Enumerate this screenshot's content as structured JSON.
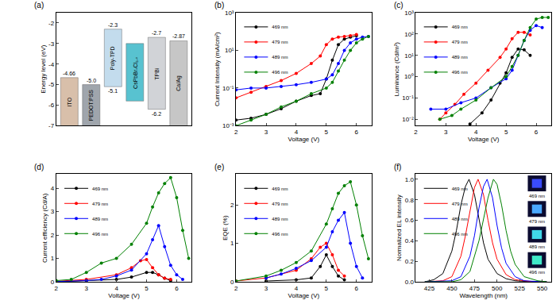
{
  "chart_data": [
    {
      "type": "energy_diagram",
      "panel_label": "(a)",
      "y_label": "Energy level (eV)",
      "ylim": [
        -7,
        -1.5
      ],
      "yticks": [
        -2,
        -3,
        -4,
        -5,
        -6,
        -7
      ],
      "tick_labels": "y",
      "grid": false,
      "layers": [
        {
          "name": "ITO",
          "color": "#d2b49c",
          "top": {
            "value": -4.66,
            "label": "-4.66"
          },
          "bottom": -7
        },
        {
          "name": "PEDOT:PSS",
          "color": "#8f969e",
          "top": {
            "value": -5.0,
            "label": "-5.0"
          },
          "bottom": -7
        },
        {
          "name": "Poly-TPD",
          "color": "#b9d6ea",
          "top": {
            "value": -2.3,
            "label": "-2.3"
          },
          "bottom": {
            "value": -5.1,
            "label": "-5.1"
          }
        },
        {
          "name": "CsPbBrₓCl₃₋ₓ",
          "color": "#3cb8c8",
          "top": -3.0,
          "bottom": -5.8
        },
        {
          "name": "TPBi",
          "color": "#c9ccd1",
          "top": {
            "value": -2.7,
            "label": "-2.7"
          },
          "bottom": {
            "value": -6.2,
            "label": "-6.2"
          }
        },
        {
          "name": "Ca/Ag",
          "color": "#bdbdbd",
          "top": {
            "value": -2.87,
            "label": "-2.87"
          },
          "bottom": -7
        }
      ]
    },
    {
      "type": "line",
      "panel_label": "(b)",
      "x_label": "Voltage (V)",
      "y_label": "Current Intensity (mA/cm²)",
      "log": "y",
      "grid": false,
      "legend": "upper left",
      "marker": "circle",
      "line_style": "solid",
      "xlim": [
        2,
        6.5
      ],
      "xticks": [
        2,
        3,
        4,
        5,
        6
      ],
      "ylim": [
        0.001,
        1000
      ],
      "yticks": [
        {
          "value": 0.001,
          "label": "10⁻³"
        },
        {
          "value": 0.1,
          "label": "10⁻¹"
        },
        {
          "value": 10,
          "label": "10¹"
        },
        {
          "value": 1000,
          "label": "10³"
        }
      ],
      "series": [
        {
          "name": "469 nm",
          "color": "#000000",
          "x": [
            2,
            2.5,
            3,
            3.5,
            4,
            4.5,
            4.8,
            5,
            5.2,
            5.4,
            5.6,
            5.8,
            6
          ],
          "values": [
            0.002,
            0.0025,
            0.004,
            0.008,
            0.02,
            0.04,
            0.05,
            0.3,
            3,
            20,
            40,
            50,
            60
          ]
        },
        {
          "name": "479 nm",
          "color": "#ff0000",
          "x": [
            2,
            2.5,
            3,
            3.5,
            4,
            4.5,
            4.8,
            5,
            5.2,
            5.4,
            5.6,
            5.8,
            6
          ],
          "values": [
            0.03,
            0.06,
            0.12,
            0.25,
            0.6,
            2,
            5,
            20,
            40,
            50,
            55,
            60,
            70
          ]
        },
        {
          "name": "489 nm",
          "color": "#0000ff",
          "x": [
            2,
            2.5,
            3,
            3.5,
            4,
            4.5,
            5,
            5.2,
            5.4,
            5.6,
            5.8,
            6,
            6.2,
            6.4
          ],
          "values": [
            0.08,
            0.1,
            0.1,
            0.12,
            0.15,
            0.2,
            0.3,
            0.5,
            2,
            10,
            25,
            40,
            50,
            55
          ]
        },
        {
          "name": "496 nm",
          "color": "#008000",
          "x": [
            2,
            2.5,
            3,
            3.5,
            4,
            4.5,
            5,
            5.2,
            5.4,
            5.6,
            5.8,
            6,
            6.2,
            6.4
          ],
          "values": [
            0.001,
            0.002,
            0.004,
            0.01,
            0.02,
            0.05,
            0.1,
            0.2,
            0.8,
            3,
            10,
            25,
            40,
            55
          ]
        }
      ]
    },
    {
      "type": "line",
      "panel_label": "(c)",
      "x_label": "Voltage (V)",
      "y_label": "Luminance (Cd/m²)",
      "log": "y",
      "grid": false,
      "legend": "upper left",
      "marker": "circle",
      "line_style": "solid",
      "xlim": [
        2,
        6.5
      ],
      "xticks": [
        2,
        3,
        4,
        5,
        6
      ],
      "ylim": [
        0.005,
        1000
      ],
      "yticks": [
        {
          "value": 0.01,
          "label": "10⁻²"
        },
        {
          "value": 0.1,
          "label": "10⁻¹"
        },
        {
          "value": 1,
          "label": "10⁰"
        },
        {
          "value": 10,
          "label": "10¹"
        },
        {
          "value": 100,
          "label": "10²"
        },
        {
          "value": 1000,
          "label": "10³"
        }
      ],
      "series": [
        {
          "name": "469 nm",
          "color": "#000000",
          "x": [
            3.8,
            4.2,
            4.5,
            4.8,
            5,
            5.2,
            5.4,
            5.6,
            5.8
          ],
          "values": [
            0.006,
            0.02,
            0.08,
            0.5,
            1.5,
            8,
            20,
            18,
            10
          ]
        },
        {
          "name": "479 nm",
          "color": "#ff0000",
          "x": [
            2.8,
            3,
            3.3,
            3.6,
            4,
            4.4,
            4.8,
            5,
            5.2,
            5.4,
            5.6,
            5.8
          ],
          "values": [
            0.01,
            0.02,
            0.05,
            0.15,
            0.5,
            2,
            8,
            20,
            60,
            120,
            120,
            90
          ]
        },
        {
          "name": "489 nm",
          "color": "#0000ff",
          "x": [
            2.5,
            3,
            3.5,
            4,
            4.5,
            5,
            5.2,
            5.4,
            5.6,
            5.8,
            6,
            6.2
          ],
          "values": [
            0.03,
            0.03,
            0.06,
            0.1,
            0.3,
            0.8,
            2,
            10,
            50,
            150,
            250,
            200
          ]
        },
        {
          "name": "496 nm",
          "color": "#008000",
          "x": [
            2.8,
            3.2,
            3.5,
            4,
            4.5,
            5,
            5.2,
            5.4,
            5.6,
            5.8,
            6,
            6.2,
            6.4
          ],
          "values": [
            0.01,
            0.015,
            0.03,
            0.08,
            0.3,
            1,
            3,
            10,
            50,
            200,
            500,
            600,
            600
          ]
        }
      ]
    },
    {
      "type": "line",
      "panel_label": "(d)",
      "x_label": "Voltage (V)",
      "y_label": "Current efficiency (Cd/A)",
      "grid": false,
      "legend": "upper left",
      "marker": "circle",
      "line_style": "solid",
      "xlim": [
        2,
        6.5
      ],
      "xticks": [
        2,
        3,
        4,
        5,
        6
      ],
      "ylim": [
        0,
        4.6
      ],
      "yticks": [
        0,
        1,
        2,
        3,
        4
      ],
      "series": [
        {
          "name": "469 nm",
          "color": "#000000",
          "x": [
            2,
            3,
            4,
            4.5,
            5,
            5.2,
            5.4,
            5.6,
            5.8
          ],
          "values": [
            0,
            0.05,
            0.1,
            0.2,
            0.4,
            0.4,
            0.3,
            0.15,
            0.05
          ]
        },
        {
          "name": "479 nm",
          "color": "#ff0000",
          "x": [
            2,
            3,
            4,
            4.5,
            4.8,
            5,
            5.2,
            5.4,
            5.6,
            5.8
          ],
          "values": [
            0.02,
            0.1,
            0.3,
            0.6,
            0.9,
            0.95,
            0.6,
            0.3,
            0.15,
            0.1
          ]
        },
        {
          "name": "489 nm",
          "color": "#0000ff",
          "x": [
            2,
            3,
            3.5,
            4,
            4.5,
            5,
            5.2,
            5.4,
            5.6,
            5.8,
            6,
            6.2
          ],
          "values": [
            0.01,
            0.05,
            0.1,
            0.25,
            0.5,
            1.2,
            1.8,
            2.4,
            1.5,
            0.7,
            0.3,
            0.1
          ]
        },
        {
          "name": "496 nm",
          "color": "#008000",
          "x": [
            2,
            2.5,
            3,
            3.5,
            4,
            4.5,
            5,
            5.2,
            5.4,
            5.6,
            5.8,
            6,
            6.2,
            6.4
          ],
          "values": [
            0.05,
            0.1,
            0.4,
            0.8,
            1.0,
            1.6,
            2.5,
            3.2,
            3.8,
            4.2,
            4.45,
            3.6,
            2.2,
            1.0
          ]
        }
      ]
    },
    {
      "type": "line",
      "panel_label": "(e)",
      "x_label": "Voltage (V)",
      "y_label": "EQE (%)",
      "grid": false,
      "legend": "upper left",
      "marker": "circle",
      "line_style": "solid",
      "xlim": [
        2,
        6.5
      ],
      "xticks": [
        2,
        3,
        4,
        5,
        6
      ],
      "ylim": [
        0,
        2.8
      ],
      "yticks": [
        0,
        1,
        2
      ],
      "series": [
        {
          "name": "469 nm",
          "color": "#000000",
          "x": [
            3,
            4,
            4.5,
            4.8,
            5,
            5.2,
            5.4,
            5.6
          ],
          "values": [
            0.02,
            0.05,
            0.1,
            0.4,
            0.7,
            0.4,
            0.15,
            0.05
          ]
        },
        {
          "name": "479 nm",
          "color": "#ff0000",
          "x": [
            2,
            3,
            4,
            4.5,
            4.8,
            5,
            5.2,
            5.4,
            5.6
          ],
          "values": [
            0.02,
            0.1,
            0.3,
            0.6,
            0.9,
            1.0,
            0.7,
            0.3,
            0.15
          ]
        },
        {
          "name": "489 nm",
          "color": "#0000ff",
          "x": [
            3,
            3.5,
            4,
            4.5,
            5,
            5.2,
            5.4,
            5.6,
            5.8,
            6,
            6.2
          ],
          "values": [
            0.1,
            0.2,
            0.35,
            0.55,
            0.9,
            1.3,
            1.6,
            1.8,
            1.0,
            0.4,
            0.1
          ]
        },
        {
          "name": "496 nm",
          "color": "#008000",
          "x": [
            2,
            3,
            3.5,
            4,
            4.5,
            5,
            5.2,
            5.4,
            5.6,
            5.8,
            6,
            6.2,
            6.4
          ],
          "values": [
            0.02,
            0.15,
            0.3,
            0.5,
            0.8,
            1.5,
            1.9,
            2.3,
            2.5,
            2.6,
            2.0,
            1.2,
            0.6
          ]
        }
      ]
    },
    {
      "type": "line",
      "panel_label": "(f)",
      "x_label": "Wavelength (nm)",
      "y_label": "Normalized EL intensity",
      "grid": false,
      "legend": "upper left",
      "line_style": "solid",
      "xlim": [
        410,
        560
      ],
      "xticks": [
        425,
        450,
        475,
        500,
        525,
        550
      ],
      "ylim": [
        0,
        1.05
      ],
      "yticks": [
        {
          "value": 0,
          "label": "0.0"
        },
        0.2,
        0.4,
        0.6,
        0.8,
        {
          "value": 1,
          "label": "1.0"
        }
      ],
      "annotations": [
        {
          "text": "469 nm",
          "color": "#3a4cff"
        },
        {
          "text": "479 nm",
          "color": "#4aa8ff"
        },
        {
          "text": "489 nm",
          "color": "#40d8e8"
        },
        {
          "text": "496 nm",
          "color": "#40e8c8"
        }
      ],
      "series": [
        {
          "name": "469 nm",
          "color": "#000000",
          "x": [
            420,
            430,
            440,
            450,
            455,
            460,
            465,
            469,
            475,
            480,
            485,
            490,
            500,
            510,
            520,
            540,
            555
          ],
          "values": [
            0,
            0.02,
            0.08,
            0.3,
            0.5,
            0.75,
            0.93,
            1.0,
            0.85,
            0.6,
            0.38,
            0.22,
            0.08,
            0.03,
            0.01,
            0,
            0
          ]
        },
        {
          "name": "479 nm",
          "color": "#ff0000",
          "x": [
            420,
            440,
            450,
            460,
            465,
            470,
            475,
            479,
            485,
            490,
            495,
            500,
            510,
            520,
            540,
            555
          ],
          "values": [
            0,
            0.01,
            0.05,
            0.25,
            0.45,
            0.7,
            0.92,
            1.0,
            0.85,
            0.6,
            0.38,
            0.22,
            0.07,
            0.02,
            0,
            0
          ]
        },
        {
          "name": "489 nm",
          "color": "#0000ff",
          "x": [
            420,
            450,
            460,
            470,
            475,
            480,
            485,
            489,
            495,
            500,
            505,
            510,
            520,
            530,
            550,
            555
          ],
          "values": [
            0,
            0.01,
            0.05,
            0.25,
            0.45,
            0.72,
            0.93,
            1.0,
            0.82,
            0.55,
            0.33,
            0.18,
            0.05,
            0.01,
            0,
            0
          ]
        },
        {
          "name": "496 nm",
          "color": "#008000",
          "x": [
            420,
            450,
            460,
            470,
            480,
            485,
            490,
            496,
            500,
            505,
            510,
            515,
            520,
            530,
            545,
            555
          ],
          "values": [
            0,
            0,
            0.02,
            0.1,
            0.4,
            0.6,
            0.82,
            1.0,
            0.95,
            0.75,
            0.5,
            0.3,
            0.17,
            0.05,
            0.01,
            0
          ]
        }
      ]
    }
  ]
}
